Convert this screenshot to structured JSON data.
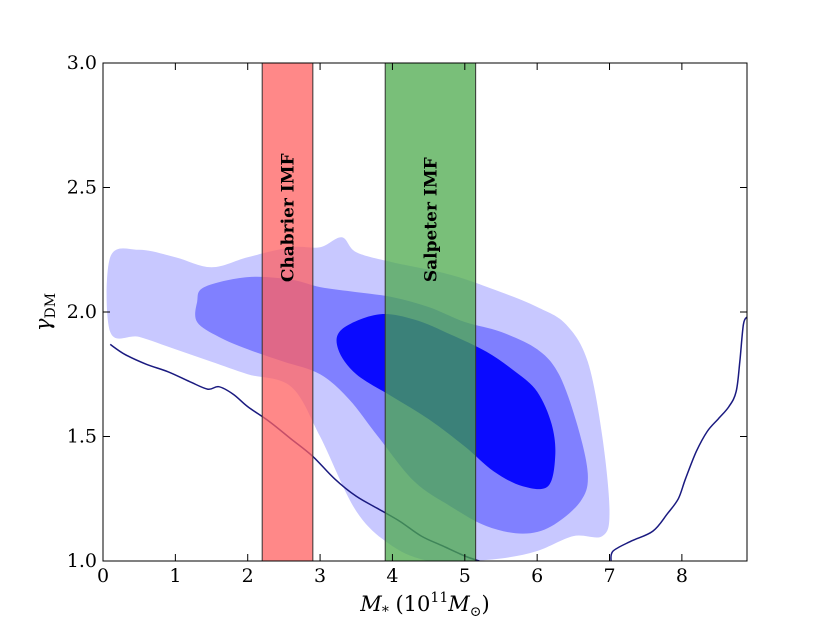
{
  "chart_data": {
    "type": "contour",
    "xlabel_main": "M",
    "xlabel_sub": "*",
    "xlabel_paren": " (10",
    "xlabel_exp": "11",
    "xlabel_m": "M",
    "xlabel_sun": "⊙",
    "xlabel_close": ")",
    "ylabel_main": "γ",
    "ylabel_sub": "DM",
    "xlim": [
      0,
      8.9
    ],
    "ylim": [
      1.0,
      3.0
    ],
    "xticks": [
      0,
      1,
      2,
      3,
      4,
      5,
      6,
      7,
      8
    ],
    "xtick_labels": [
      "0",
      "1",
      "2",
      "3",
      "4",
      "5",
      "6",
      "7",
      "8"
    ],
    "yticks": [
      1.0,
      1.5,
      2.0,
      2.5,
      3.0
    ],
    "ytick_labels": [
      "1.0",
      "1.5",
      "2.0",
      "2.5",
      "3.0"
    ],
    "bands": [
      {
        "name": "Chabrier IMF",
        "x0": 2.2,
        "x1": 2.9,
        "color": "#ff6060"
      },
      {
        "name": "Salpeter IMF",
        "x0": 3.9,
        "x1": 5.15,
        "color": "#4caa4c"
      }
    ],
    "contours": [
      {
        "level": "outer",
        "color": "#c8c8ff",
        "points": [
          [
            0.1,
            2.22
          ],
          [
            0.5,
            2.25
          ],
          [
            1.0,
            2.22
          ],
          [
            1.5,
            2.18
          ],
          [
            2.0,
            2.22
          ],
          [
            2.6,
            2.26
          ],
          [
            3.0,
            2.26
          ],
          [
            3.3,
            2.3
          ],
          [
            3.5,
            2.24
          ],
          [
            4.0,
            2.2
          ],
          [
            4.8,
            2.15
          ],
          [
            5.5,
            2.08
          ],
          [
            6.0,
            2.02
          ],
          [
            6.4,
            1.95
          ],
          [
            6.7,
            1.8
          ],
          [
            6.9,
            1.5
          ],
          [
            7.0,
            1.2
          ],
          [
            6.9,
            1.1
          ],
          [
            6.5,
            1.1
          ],
          [
            6.0,
            1.04
          ],
          [
            5.5,
            1.01
          ],
          [
            5.0,
            1.0
          ],
          [
            4.5,
            1.0
          ],
          [
            4.0,
            1.06
          ],
          [
            3.5,
            1.2
          ],
          [
            3.0,
            1.5
          ],
          [
            2.6,
            1.7
          ],
          [
            2.0,
            1.75
          ],
          [
            1.5,
            1.8
          ],
          [
            1.0,
            1.85
          ],
          [
            0.5,
            1.9
          ],
          [
            0.1,
            1.92
          ]
        ]
      },
      {
        "level": "middle",
        "color": "#8080ff",
        "points": [
          [
            1.4,
            2.1
          ],
          [
            2.0,
            2.14
          ],
          [
            2.6,
            2.13
          ],
          [
            3.0,
            2.1
          ],
          [
            3.5,
            2.08
          ],
          [
            4.0,
            2.06
          ],
          [
            4.5,
            2.02
          ],
          [
            5.0,
            1.96
          ],
          [
            5.5,
            1.92
          ],
          [
            6.0,
            1.85
          ],
          [
            6.3,
            1.75
          ],
          [
            6.55,
            1.55
          ],
          [
            6.7,
            1.35
          ],
          [
            6.6,
            1.24
          ],
          [
            6.2,
            1.14
          ],
          [
            5.8,
            1.11
          ],
          [
            5.3,
            1.14
          ],
          [
            4.8,
            1.22
          ],
          [
            4.3,
            1.32
          ],
          [
            3.8,
            1.5
          ],
          [
            3.4,
            1.65
          ],
          [
            3.0,
            1.75
          ],
          [
            2.5,
            1.8
          ],
          [
            2.0,
            1.85
          ],
          [
            1.6,
            1.9
          ],
          [
            1.3,
            1.96
          ],
          [
            1.3,
            2.04
          ]
        ]
      },
      {
        "level": "inner",
        "color": "#0a0aff",
        "points": [
          [
            3.3,
            1.93
          ],
          [
            3.8,
            1.99
          ],
          [
            4.3,
            1.97
          ],
          [
            4.8,
            1.91
          ],
          [
            5.3,
            1.84
          ],
          [
            5.7,
            1.76
          ],
          [
            6.0,
            1.68
          ],
          [
            6.2,
            1.55
          ],
          [
            6.25,
            1.42
          ],
          [
            6.15,
            1.3
          ],
          [
            5.8,
            1.3
          ],
          [
            5.4,
            1.36
          ],
          [
            5.0,
            1.46
          ],
          [
            4.5,
            1.57
          ],
          [
            4.0,
            1.66
          ],
          [
            3.5,
            1.75
          ],
          [
            3.25,
            1.85
          ]
        ]
      }
    ],
    "lines": [
      {
        "name": "left-boundary",
        "color": "#1a1a80",
        "points": [
          [
            0.1,
            1.87
          ],
          [
            0.3,
            1.83
          ],
          [
            0.6,
            1.79
          ],
          [
            0.9,
            1.76
          ],
          [
            1.2,
            1.72
          ],
          [
            1.45,
            1.69
          ],
          [
            1.6,
            1.7
          ],
          [
            1.8,
            1.67
          ],
          [
            2.0,
            1.62
          ],
          [
            2.3,
            1.56
          ],
          [
            2.6,
            1.49
          ],
          [
            2.9,
            1.42
          ],
          [
            3.2,
            1.33
          ],
          [
            3.5,
            1.26
          ],
          [
            3.8,
            1.21
          ],
          [
            4.1,
            1.16
          ],
          [
            4.4,
            1.1
          ],
          [
            4.7,
            1.06
          ],
          [
            5.0,
            1.02
          ],
          [
            5.2,
            1.0
          ]
        ]
      },
      {
        "name": "right-boundary",
        "color": "#1a1a80",
        "points": [
          [
            7.02,
            1.0
          ],
          [
            7.05,
            1.04
          ],
          [
            7.3,
            1.08
          ],
          [
            7.6,
            1.12
          ],
          [
            7.8,
            1.19
          ],
          [
            7.95,
            1.25
          ],
          [
            8.05,
            1.33
          ],
          [
            8.2,
            1.44
          ],
          [
            8.35,
            1.52
          ],
          [
            8.5,
            1.57
          ],
          [
            8.65,
            1.62
          ],
          [
            8.75,
            1.68
          ],
          [
            8.8,
            1.8
          ],
          [
            8.85,
            1.95
          ],
          [
            8.9,
            1.98
          ]
        ]
      }
    ]
  }
}
